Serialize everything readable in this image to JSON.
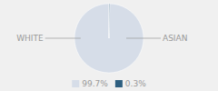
{
  "chart_data": {
    "type": "pie",
    "categories": [
      "99.7%",
      "0.3%"
    ],
    "values": [
      99.7,
      0.3
    ],
    "colors": [
      "#d6dde8",
      "#2e5f80"
    ],
    "annotations": [
      "WHITE",
      "ASIAN"
    ],
    "legend": "bottom"
  }
}
